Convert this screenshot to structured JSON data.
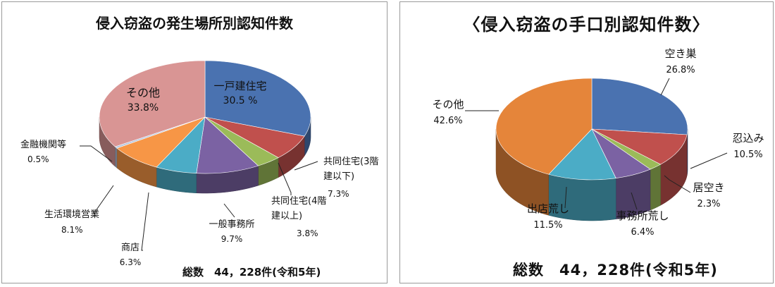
{
  "chart_data": [
    {
      "type": "pie",
      "title": "侵入窃盗の発生場所別認知件数",
      "total_label": "総数　44，228件(令和5年)",
      "slices": [
        {
          "id": "ikko",
          "label_lines": [
            "一戸建住宅"
          ],
          "value_label": "30.5 %",
          "value": 30.5,
          "color": "#4a72b0"
        },
        {
          "id": "kyodo3",
          "label_lines": [
            "共同住宅(3階",
            "建以下)"
          ],
          "value_label": "7.3%",
          "value": 7.3,
          "color": "#c0504d"
        },
        {
          "id": "kyodo4",
          "label_lines": [
            "共同住宅(4階",
            "建以上)"
          ],
          "value_label": "3.8%",
          "value": 3.8,
          "color": "#9bbb59"
        },
        {
          "id": "jimusho",
          "label_lines": [
            "一般事務所"
          ],
          "value_label": "9.7%",
          "value": 9.7,
          "color": "#7b62a3"
        },
        {
          "id": "shoten",
          "label_lines": [
            "商店"
          ],
          "value_label": "6.3%",
          "value": 6.3,
          "color": "#4bacc6"
        },
        {
          "id": "seikatsu",
          "label_lines": [
            "生活環境営業"
          ],
          "value_label": "8.1%",
          "value": 8.1,
          "color": "#f79646"
        },
        {
          "id": "kinyu",
          "label_lines": [
            "金融機関等"
          ],
          "value_label": "0.5%",
          "value": 0.5,
          "color": "#b6c7e0"
        },
        {
          "id": "sonota",
          "label_lines": [
            "その他"
          ],
          "value_label": "33.8%",
          "value": 33.8,
          "color": "#d99594"
        }
      ]
    },
    {
      "type": "pie",
      "title": "〈侵入窃盗の手口別認知件数〉",
      "total_label": "総数　44，228件(令和5年)",
      "slices": [
        {
          "id": "akisu",
          "label_lines": [
            "空き巣"
          ],
          "value_label": "26.8%",
          "value": 26.8,
          "color": "#4a72b0"
        },
        {
          "id": "shinobi",
          "label_lines": [
            "忍込み"
          ],
          "value_label": "10.5%",
          "value": 10.5,
          "color": "#c0504d"
        },
        {
          "id": "iaki",
          "label_lines": [
            "居空き"
          ],
          "value_label": "2.3%",
          "value": 2.3,
          "color": "#9bbb59"
        },
        {
          "id": "jimuarashi",
          "label_lines": [
            "事務所荒し"
          ],
          "value_label": "6.4%",
          "value": 6.4,
          "color": "#7b62a3"
        },
        {
          "id": "detenarashi",
          "label_lines": [
            "出店荒し"
          ],
          "value_label": "11.5%",
          "value": 11.5,
          "color": "#4bacc6"
        },
        {
          "id": "sonota2",
          "label_lines": [
            "その他"
          ],
          "value_label": "42.6%",
          "value": 42.6,
          "color": "#e5853a"
        }
      ]
    }
  ]
}
